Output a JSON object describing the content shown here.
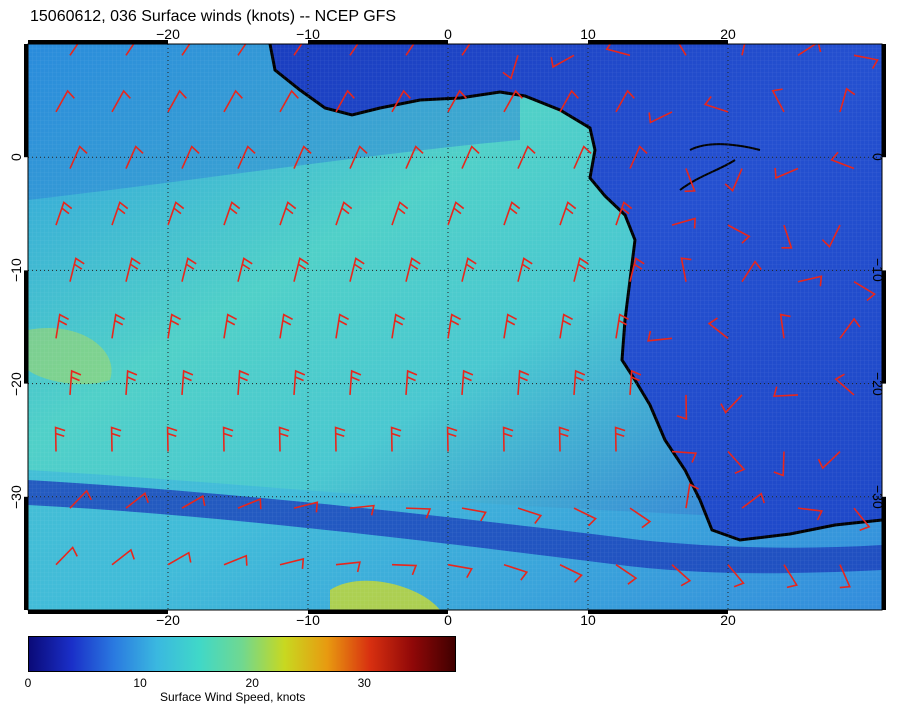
{
  "title": "15060612, 036 Surface winds (knots) -- NCEP GFS",
  "map": {
    "lon_range": [
      -30,
      31
    ],
    "lat_range": [
      -40,
      10
    ],
    "lon_ticks": [
      {
        "value": -20,
        "label": "−20"
      },
      {
        "value": -10,
        "label": "−10"
      },
      {
        "value": 0,
        "label": "0"
      },
      {
        "value": 10,
        "label": "10"
      },
      {
        "value": 20,
        "label": "20"
      }
    ],
    "lat_ticks": [
      {
        "value": 0,
        "label": "0"
      },
      {
        "value": -10,
        "label": "−10"
      },
      {
        "value": -20,
        "label": "−20"
      },
      {
        "value": -30,
        "label": "−30"
      }
    ],
    "barb_color": "#e8261c",
    "coast_color": "#000000",
    "grid_color": "#202020"
  },
  "colorbar": {
    "label": "Surface Wind Speed, knots",
    "range": [
      0,
      38
    ],
    "ticks": [
      {
        "value": 0,
        "label": "0"
      },
      {
        "value": 10,
        "label": "10"
      },
      {
        "value": 20,
        "label": "20"
      },
      {
        "value": 30,
        "label": "30"
      }
    ],
    "colors": [
      "#0a0a78",
      "#1a2fc8",
      "#2a7ae0",
      "#3ab8e0",
      "#40d8c8",
      "#70d890",
      "#c8d820",
      "#e89a10",
      "#d83010",
      "#900808",
      "#400000"
    ]
  }
}
